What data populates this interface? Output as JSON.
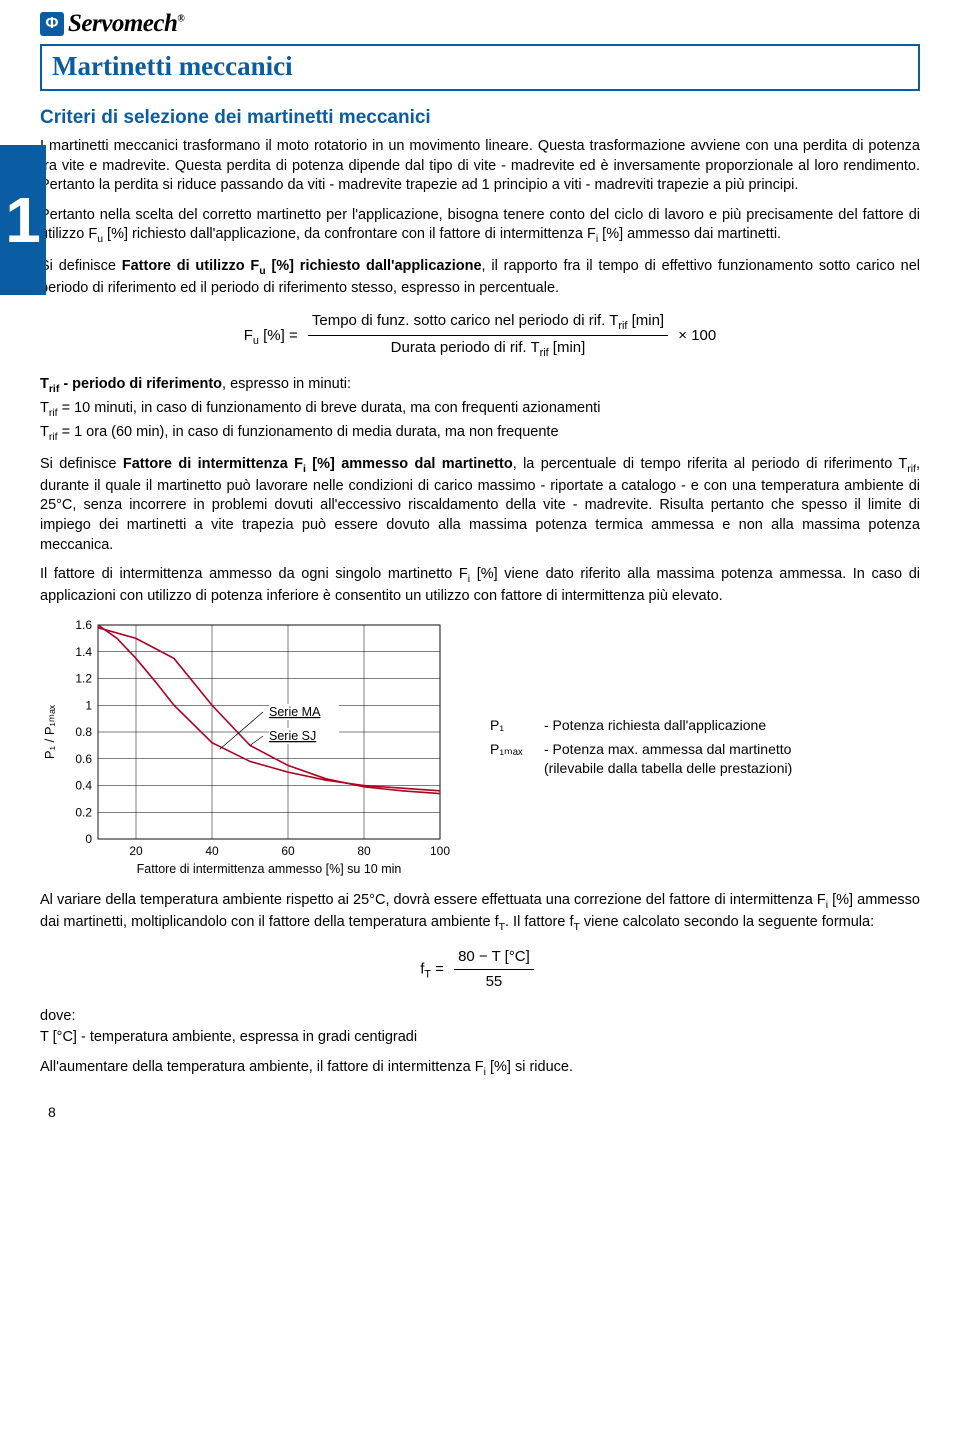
{
  "logo": {
    "brand": "Servomech",
    "mark": "Φ",
    "reg": "®"
  },
  "title": "Martinetti meccanici",
  "section_heading": "Criteri di selezione dei martinetti meccanici",
  "sidebar_num": "1",
  "page_number": "8",
  "para1": "I martinetti meccanici trasformano il moto rotatorio in un movimento lineare. Questa trasformazione avviene con una perdita di potenza fra vite e madrevite. Questa perdita di potenza dipende dal tipo di vite - madrevite ed è inversamente proporzionale al loro rendimento. Pertanto la perdita si riduce passando da viti - madrevite trapezie ad 1 principio a viti - madreviti trapezie a più principi.",
  "para2_a": "Pertanto nella scelta del corretto martinetto per l'applicazione, bisogna tenere conto del ciclo di lavoro e più precisamente del fattore di utilizzo F",
  "para2_b": " [%] richiesto dall'applicazione, da confrontare con il fattore di intermittenza F",
  "para2_c": " [%] ammesso dai martinetti.",
  "para3_a": "Si definisce ",
  "para3_b": "Fattore di utilizzo F",
  "para3_c": " [%] richiesto dall'applicazione",
  "para3_d": ", il rapporto fra il tempo di effettivo funzionamento sotto carico nel periodo di riferimento ed il periodo di riferimento stesso, espresso in percentuale.",
  "formula1": {
    "lhs": "F",
    "lhs_sub": "u",
    "lhs_rest": " [%] = ",
    "top_a": "Tempo di funz. sotto carico nel periodo di rif. T",
    "top_b": " [min]",
    "bot_a": "Durata periodo di rif. T",
    "bot_b": " [min]",
    "tail": " × 100"
  },
  "trif_head_a": "T",
  "trif_head_b": " - periodo di riferimento",
  "trif_head_c": ", espresso in minuti:",
  "trif_l1_a": "T",
  "trif_l1_b": " = 10 minuti, in caso di funzionamento di breve durata, ma con frequenti azionamenti",
  "trif_l2_a": "T",
  "trif_l2_b": " = 1 ora (60 min), in caso di funzionamento di media durata, ma non frequente",
  "para4_a": "Si definisce ",
  "para4_b": "Fattore di intermittenza F",
  "para4_c": " [%] ammesso dal martinetto",
  "para4_d": ", la percentuale di tempo riferita al periodo di riferimento T",
  "para4_e": ", durante il quale il martinetto può lavorare nelle condizioni di carico massimo - riportate a catalogo - e con una temperatura ambiente di 25°C, senza incorrere in problemi dovuti all'eccessivo riscaldamento della vite - madrevite. Risulta pertanto che spesso il limite di impiego dei martinetti a vite trapezia può essere dovuto alla massima potenza termica ammessa e non alla massima potenza meccanica.",
  "para5_a": "Il fattore di intermittenza ammesso da ogni singolo martinetto F",
  "para5_b": " [%] viene dato riferito alla massima potenza ammessa. In caso di applicazioni con utilizzo di potenza inferiore è consentito un utilizzo con fattore di intermittenza più elevato.",
  "chart": {
    "type": "line",
    "y_label": "P₁ / P₁ₘₐₓ",
    "x_label": "Fattore di intermittenza ammesso [%] su 10 min",
    "x_ticks": [
      "20",
      "40",
      "60",
      "80",
      "100"
    ],
    "y_ticks": [
      "0",
      "0.2",
      "0.4",
      "0.6",
      "0.8",
      "1",
      "1.2",
      "1.4",
      "1.6"
    ],
    "xlim": [
      10,
      100
    ],
    "ylim": [
      0,
      1.6
    ],
    "grid_color": "#000",
    "line_color": "#b00020",
    "line_width": 1.6,
    "legend": [
      {
        "label": "Serie MA"
      },
      {
        "label": "Serie SJ"
      }
    ],
    "series_MA": [
      [
        10,
        1.6
      ],
      [
        15,
        1.5
      ],
      [
        20,
        1.35
      ],
      [
        25,
        1.18
      ],
      [
        30,
        1.0
      ],
      [
        40,
        0.72
      ],
      [
        50,
        0.58
      ],
      [
        60,
        0.5
      ],
      [
        70,
        0.44
      ],
      [
        80,
        0.4
      ],
      [
        90,
        0.38
      ],
      [
        100,
        0.36
      ]
    ],
    "series_SJ": [
      [
        10,
        1.58
      ],
      [
        20,
        1.5
      ],
      [
        30,
        1.35
      ],
      [
        40,
        1.0
      ],
      [
        50,
        0.7
      ],
      [
        60,
        0.55
      ],
      [
        70,
        0.45
      ],
      [
        80,
        0.39
      ],
      [
        90,
        0.36
      ],
      [
        100,
        0.34
      ]
    ]
  },
  "legend_side": {
    "r1_sym": "P₁",
    "r1_txt": "- Potenza richiesta dall'applicazione",
    "r2_sym": "P₁ₘₐₓ",
    "r2_txt": "- Potenza max. ammessa dal martinetto",
    "r2_txt2": "  (rilevabile dalla tabella delle prestazioni)"
  },
  "para6_a": "Al variare della temperatura ambiente rispetto ai 25°C, dovrà essere effettuata una correzione del fattore di intermittenza F",
  "para6_b": " [%] ammesso dai martinetti, moltiplicandolo con il fattore della temperatura ambiente f",
  "para6_c": ". Il fattore f",
  "para6_d": " viene calcolato secondo la seguente formula:",
  "formula2": {
    "lhs": "f",
    "lhs_sub": "T",
    "eq": " = ",
    "top": "80 − T [°C]",
    "bot": "55"
  },
  "dove": "dove:",
  "dove_line": "T [°C] - temperatura ambiente, espressa in gradi centigradi",
  "para7_a": "All'aumentare della temperatura ambiente, il fattore di intermittenza F",
  "para7_b": " [%] si riduce."
}
